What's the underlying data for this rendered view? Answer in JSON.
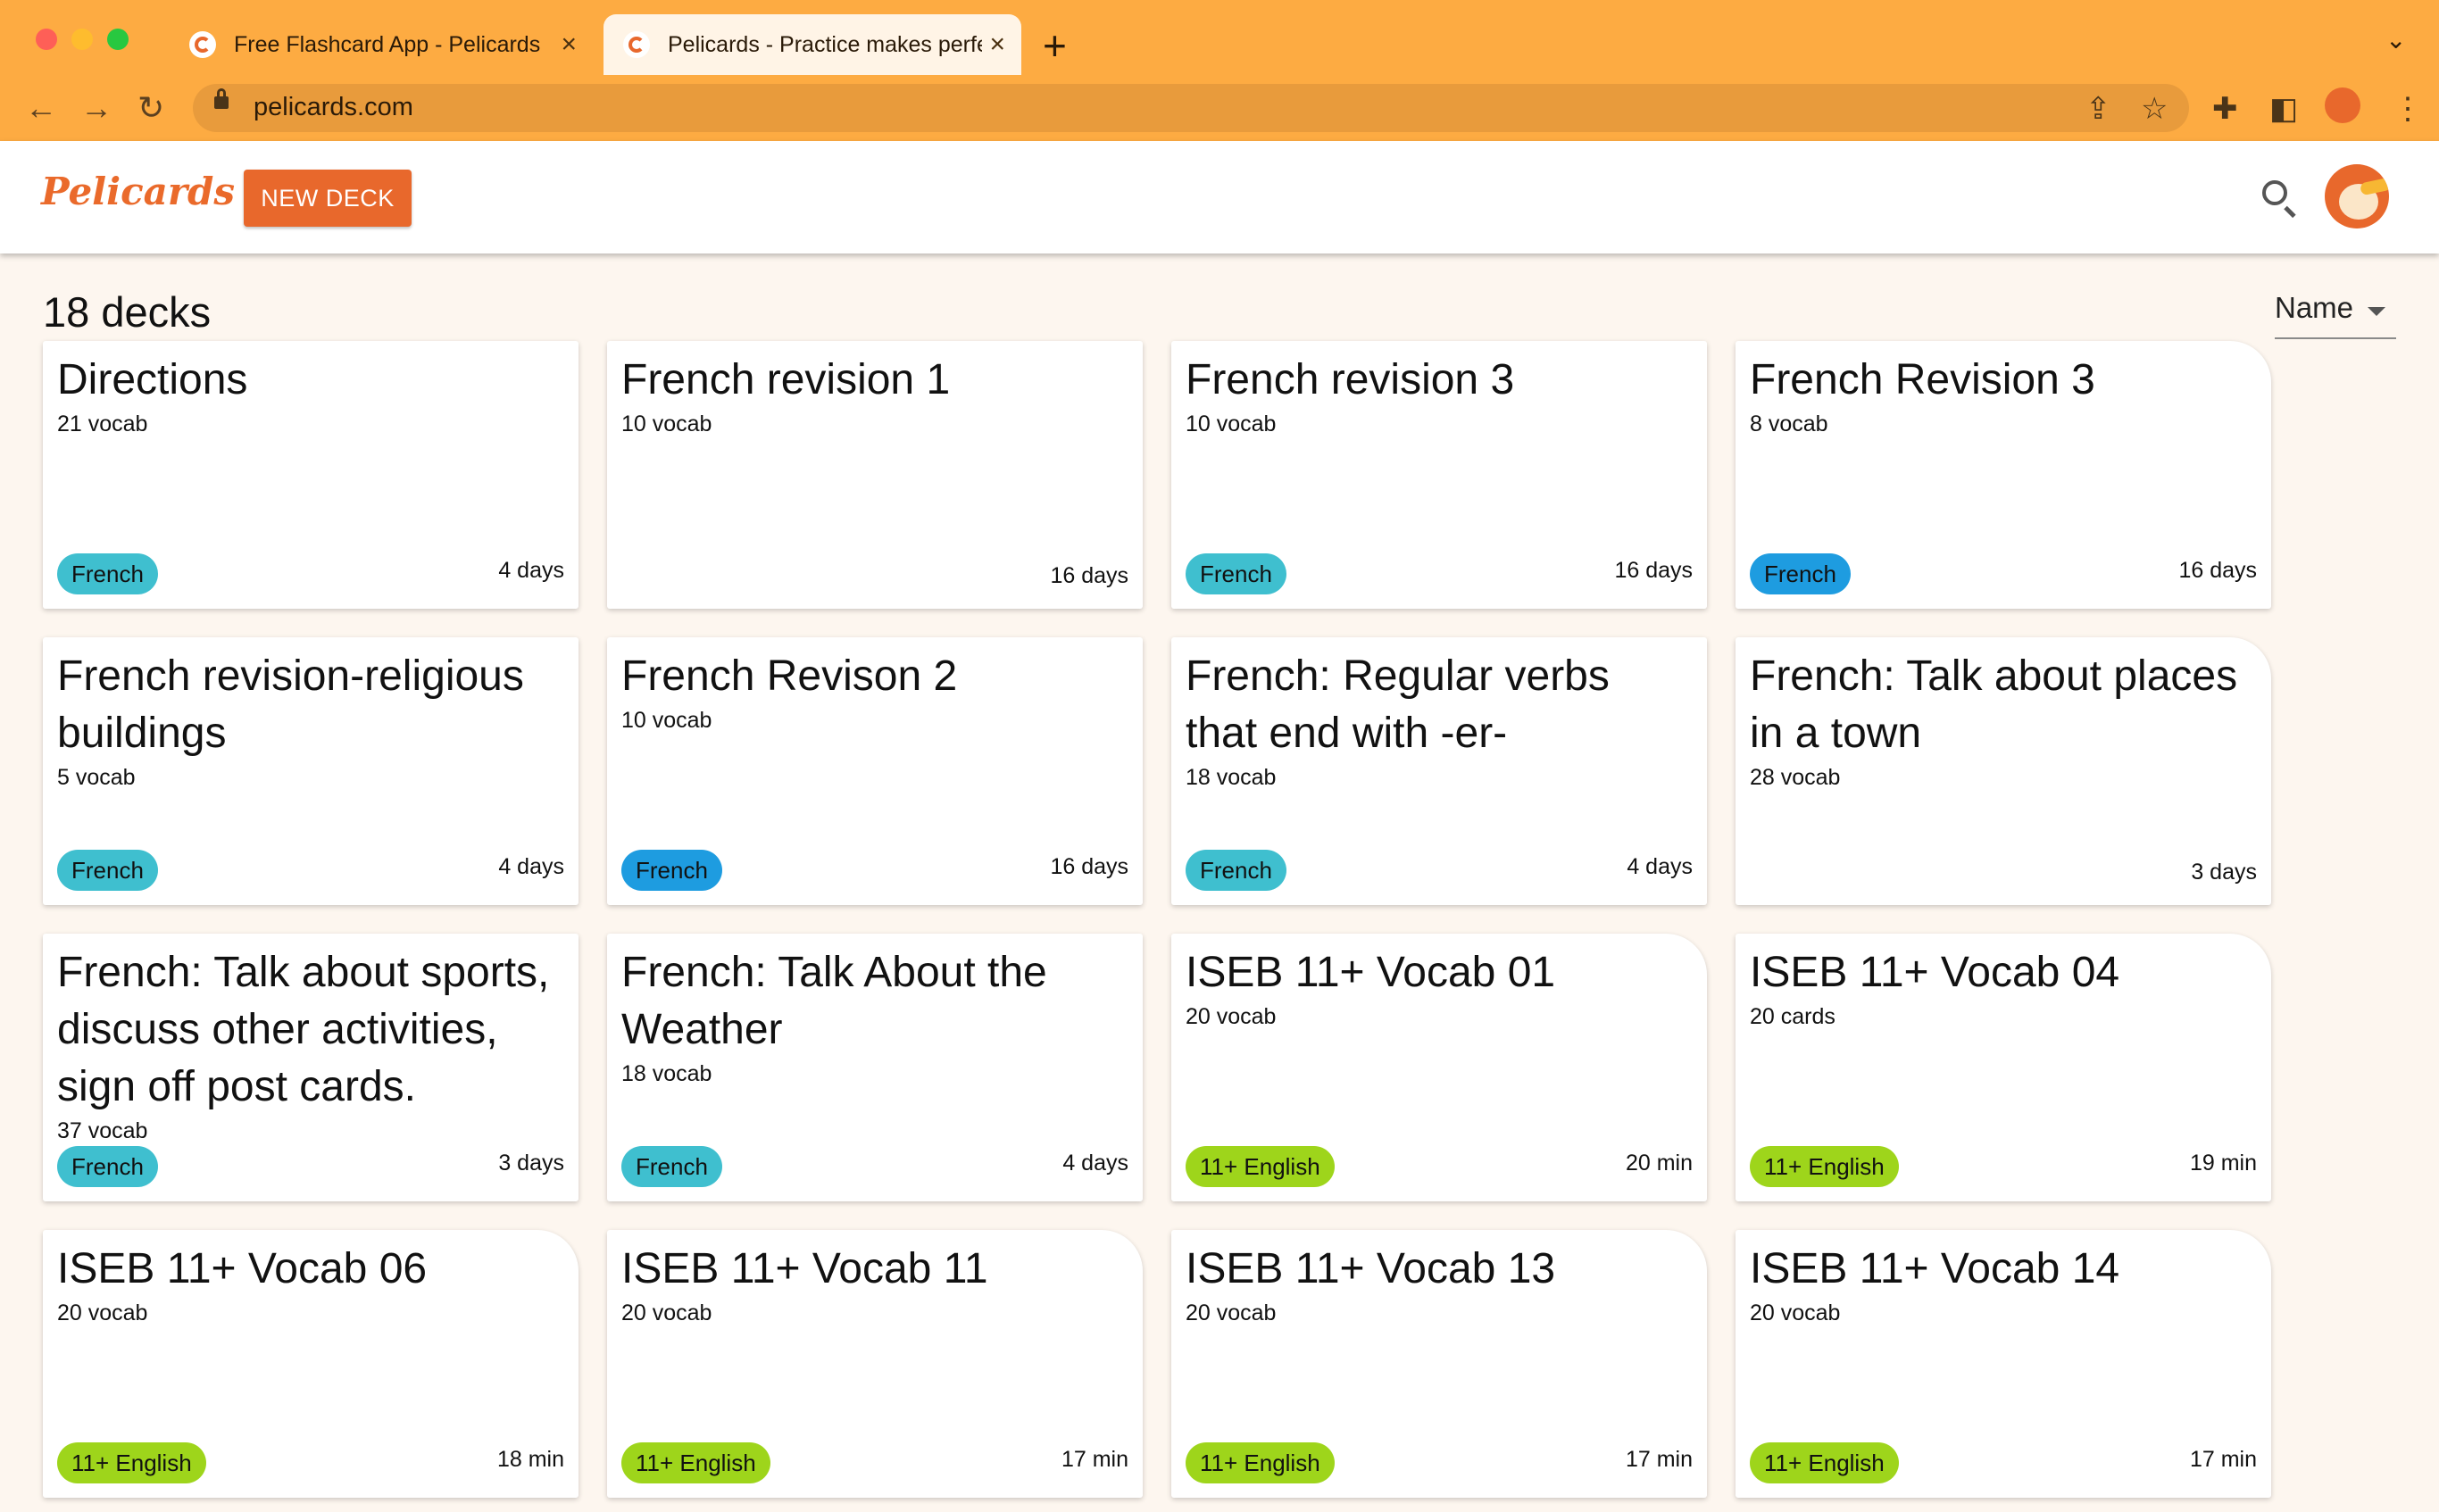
{
  "browser": {
    "tabs": [
      {
        "title": "Free Flashcard App - Pelicards",
        "active": false
      },
      {
        "title": "Pelicards - Practice makes perfect",
        "active": true
      }
    ],
    "url": "pelicards.com"
  },
  "header": {
    "logo": "Pelicards",
    "new_deck_label": "NEW DECK"
  },
  "main": {
    "deck_count_label": "18 decks",
    "sort_label": "Name"
  },
  "colors": {
    "french_tag": "#3fbfcf",
    "french_tag_alt": "#1e9ce0",
    "english_tag": "#9ed51b",
    "brand": "#e8682c",
    "browser_chrome": "#fdab42"
  },
  "decks": [
    {
      "title": "Directions",
      "count": "21 vocab",
      "tag": "French",
      "tag_color": "#3fbfcf",
      "age": "4 days"
    },
    {
      "title": "French revision 1",
      "count": "10 vocab",
      "tag": "",
      "tag_color": "",
      "age": "16 days"
    },
    {
      "title": "French revision 3",
      "count": "10 vocab",
      "tag": "French",
      "tag_color": "#3fbfcf",
      "age": "16 days"
    },
    {
      "title": "French Revision 3",
      "count": "8 vocab",
      "tag": "French",
      "tag_color": "#1e9ce0",
      "age": "16 days"
    },
    {
      "title": "French revision-religious buildings",
      "count": "5 vocab",
      "tag": "French",
      "tag_color": "#3fbfcf",
      "age": "4 days"
    },
    {
      "title": "French Revison 2",
      "count": "10 vocab",
      "tag": "French",
      "tag_color": "#1e9ce0",
      "age": "16 days"
    },
    {
      "title": "French: Regular verbs that end with -er-",
      "count": "18 vocab",
      "tag": "French",
      "tag_color": "#3fbfcf",
      "age": "4 days"
    },
    {
      "title": "French: Talk about places in a town",
      "count": "28 vocab",
      "tag": "",
      "tag_color": "",
      "age": "3 days"
    },
    {
      "title": "French: Talk about sports, discuss other activities, sign off post cards.",
      "count": "37 vocab",
      "tag": "French",
      "tag_color": "#3fbfcf",
      "age": "3 days"
    },
    {
      "title": "French: Talk About the Weather",
      "count": "18 vocab",
      "tag": "French",
      "tag_color": "#3fbfcf",
      "age": "4 days"
    },
    {
      "title": "ISEB 11+ Vocab 01",
      "count": "20 vocab",
      "tag": "11+ English",
      "tag_color": "#9ed51b",
      "age": "20 min"
    },
    {
      "title": "ISEB 11+ Vocab 04",
      "count": "20 cards",
      "tag": "11+ English",
      "tag_color": "#9ed51b",
      "age": "19 min"
    },
    {
      "title": "ISEB 11+ Vocab 06",
      "count": "20 vocab",
      "tag": "11+ English",
      "tag_color": "#9ed51b",
      "age": "18 min"
    },
    {
      "title": "ISEB 11+ Vocab 11",
      "count": "20 vocab",
      "tag": "11+ English",
      "tag_color": "#9ed51b",
      "age": "17 min"
    },
    {
      "title": "ISEB 11+ Vocab 13",
      "count": "20 vocab",
      "tag": "11+ English",
      "tag_color": "#9ed51b",
      "age": "17 min"
    },
    {
      "title": "ISEB 11+ Vocab 14",
      "count": "20 vocab",
      "tag": "11+ English",
      "tag_color": "#9ed51b",
      "age": "17 min"
    }
  ]
}
